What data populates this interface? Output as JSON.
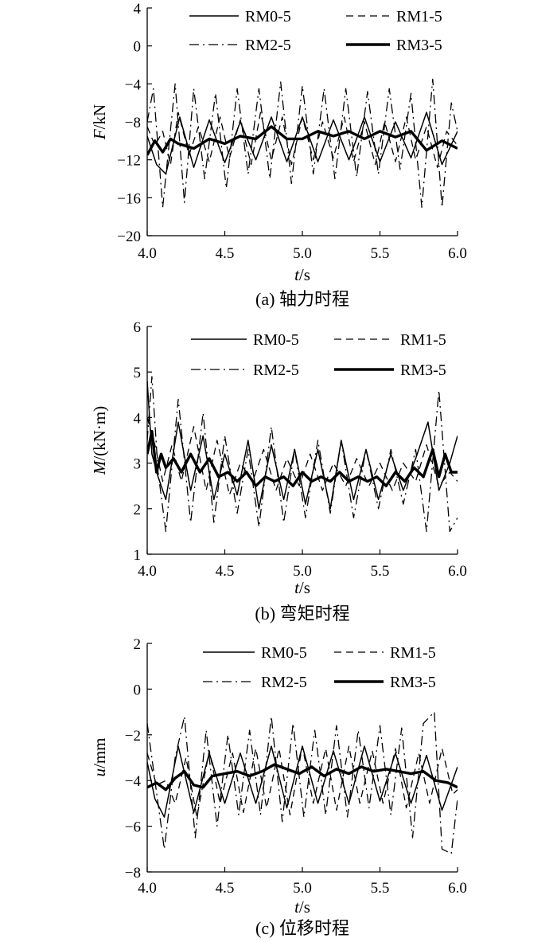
{
  "chart_data": [
    {
      "type": "line",
      "panel": "a",
      "caption": "(a) 轴力时程",
      "xlabel_var": "t",
      "xlabel_unit": "/s",
      "ylabel_var": "F",
      "ylabel_unit": "/kN",
      "xlim": [
        4.0,
        6.0
      ],
      "ylim": [
        -20,
        4
      ],
      "x_ticks": [
        "4.0",
        "4.5",
        "5.0",
        "5.5",
        "6.0"
      ],
      "y_ticks": [
        "4",
        "0",
        "−4",
        "−8",
        "−12",
        "−16",
        "−20"
      ],
      "y_tick_values": [
        4,
        0,
        -4,
        -8,
        -12,
        -16,
        -20
      ],
      "legend": [
        "RM0-5",
        "RM1-5",
        "RM2-5",
        "RM3-5"
      ],
      "series": [
        {
          "name": "RM0-5",
          "style": "solid",
          "x": [
            4.0,
            4.06,
            4.12,
            4.21,
            4.3,
            4.4,
            4.5,
            4.6,
            4.7,
            4.8,
            4.9,
            5.0,
            5.1,
            5.2,
            5.3,
            5.4,
            5.5,
            5.6,
            5.7,
            5.8,
            5.9,
            6.0
          ],
          "values": [
            -9.5,
            -12.5,
            -13.5,
            -7.5,
            -12.8,
            -7.8,
            -12.3,
            -8.0,
            -12.0,
            -7.5,
            -12.2,
            -7.5,
            -12.2,
            -7.8,
            -12.0,
            -7.5,
            -12.2,
            -8.0,
            -11.8,
            -7.0,
            -12.5,
            -9.0
          ]
        },
        {
          "name": "RM1-5",
          "style": "dashed",
          "x": [
            4.0,
            4.05,
            4.1,
            4.15,
            4.2,
            4.27,
            4.33,
            4.4,
            4.47,
            4.53,
            4.6,
            4.67,
            4.73,
            4.8,
            4.87,
            4.93,
            5.0,
            5.07,
            5.13,
            5.2,
            5.27,
            5.33,
            5.4,
            5.47,
            5.53,
            5.6,
            5.67,
            5.73,
            5.8,
            5.87,
            5.93,
            6.0
          ],
          "values": [
            -8.5,
            -10.5,
            -9.0,
            -12.5,
            -7.0,
            -11.5,
            -8.5,
            -12.2,
            -7.5,
            -11.8,
            -7.8,
            -12.5,
            -7.0,
            -12.0,
            -7.5,
            -12.5,
            -7.5,
            -12.0,
            -8.0,
            -11.8,
            -7.5,
            -12.2,
            -8.0,
            -12.5,
            -8.0,
            -12.2,
            -7.5,
            -12.0,
            -8.5,
            -12.8,
            -9.0,
            -10.5
          ]
        },
        {
          "name": "RM2-5",
          "style": "dashdot",
          "x": [
            4.0,
            4.04,
            4.1,
            4.18,
            4.24,
            4.3,
            4.37,
            4.44,
            4.51,
            4.58,
            4.65,
            4.72,
            4.79,
            4.86,
            4.93,
            5.0,
            5.07,
            5.14,
            5.21,
            5.28,
            5.35,
            5.42,
            5.49,
            5.56,
            5.63,
            5.7,
            5.77,
            5.84,
            5.9,
            5.96,
            6.0
          ],
          "values": [
            -8.0,
            -4.5,
            -17.0,
            -4.0,
            -16.5,
            -4.5,
            -14.0,
            -5.0,
            -15.0,
            -4.5,
            -13.5,
            -4.5,
            -14.0,
            -3.8,
            -14.5,
            -4.2,
            -13.5,
            -4.5,
            -14.0,
            -4.5,
            -13.8,
            -4.8,
            -13.5,
            -4.5,
            -13.0,
            -5.0,
            -17.0,
            -3.5,
            -17.0,
            -6.0,
            -9.0
          ]
        },
        {
          "name": "RM3-5",
          "style": "thick",
          "x": [
            4.0,
            4.05,
            4.1,
            4.15,
            4.2,
            4.3,
            4.4,
            4.5,
            4.6,
            4.7,
            4.8,
            4.9,
            5.0,
            5.1,
            5.2,
            5.3,
            5.4,
            5.5,
            5.6,
            5.7,
            5.8,
            5.9,
            6.0
          ],
          "values": [
            -11.5,
            -10.0,
            -11.2,
            -9.8,
            -10.3,
            -10.8,
            -9.8,
            -10.3,
            -9.5,
            -9.8,
            -8.5,
            -9.8,
            -9.8,
            -9.0,
            -9.5,
            -9.0,
            -9.8,
            -9.0,
            -9.6,
            -9.0,
            -11.0,
            -10.0,
            -10.8
          ]
        }
      ]
    },
    {
      "type": "line",
      "panel": "b",
      "caption": "(b) 弯矩时程",
      "xlabel_var": "t",
      "xlabel_unit": "/s",
      "ylabel_var": "M",
      "ylabel_unit": "/(kN·m)",
      "xlim": [
        4.0,
        6.0
      ],
      "ylim": [
        1,
        6
      ],
      "x_ticks": [
        "4.0",
        "4.5",
        "5.0",
        "5.5",
        "6.0"
      ],
      "y_ticks": [
        "6",
        "5",
        "4",
        "3",
        "2",
        "1"
      ],
      "y_tick_values": [
        6,
        5,
        4,
        3,
        2,
        1
      ],
      "legend": [
        "RM0-5",
        "RM1-5",
        "RM2-5",
        "RM3-5"
      ],
      "series": [
        {
          "name": "RM0-5",
          "style": "solid",
          "x": [
            4.0,
            4.03,
            4.07,
            4.12,
            4.2,
            4.28,
            4.36,
            4.43,
            4.5,
            4.58,
            4.65,
            4.72,
            4.8,
            4.88,
            4.95,
            5.02,
            5.1,
            5.18,
            5.25,
            5.33,
            5.41,
            5.49,
            5.57,
            5.65,
            5.73,
            5.81,
            5.88,
            5.95,
            6.0
          ],
          "values": [
            4.8,
            3.2,
            2.7,
            2.2,
            3.9,
            2.4,
            3.6,
            2.2,
            3.2,
            2.3,
            3.5,
            2.0,
            3.4,
            2.2,
            3.3,
            2.1,
            3.3,
            2.0,
            3.5,
            2.2,
            3.3,
            2.2,
            3.2,
            2.4,
            3.1,
            3.9,
            2.4,
            3.0,
            3.6
          ]
        },
        {
          "name": "RM1-5",
          "style": "dashed",
          "x": [
            4.0,
            4.05,
            4.1,
            4.16,
            4.22,
            4.3,
            4.38,
            4.45,
            4.53,
            4.6,
            4.68,
            4.75,
            4.83,
            4.9,
            4.98,
            5.05,
            5.13,
            5.2,
            5.28,
            5.35,
            5.43,
            5.5,
            5.58,
            5.65,
            5.73,
            5.8,
            5.88,
            5.95,
            6.0
          ],
          "values": [
            4.0,
            3.4,
            2.6,
            3.4,
            2.6,
            3.8,
            2.4,
            3.5,
            2.3,
            3.0,
            2.6,
            3.3,
            2.4,
            3.1,
            2.5,
            3.2,
            2.4,
            3.0,
            2.5,
            3.1,
            2.5,
            3.0,
            2.4,
            3.0,
            2.6,
            3.4,
            2.5,
            2.8,
            2.6
          ]
        },
        {
          "name": "RM2-5",
          "style": "dashdot",
          "x": [
            4.0,
            4.03,
            4.07,
            4.12,
            4.2,
            4.28,
            4.36,
            4.43,
            4.5,
            4.58,
            4.65,
            4.72,
            4.8,
            4.88,
            4.95,
            5.02,
            5.1,
            5.18,
            5.25,
            5.33,
            5.41,
            5.49,
            5.57,
            5.65,
            5.73,
            5.8,
            5.88,
            5.95,
            6.0
          ],
          "values": [
            3.5,
            4.9,
            2.8,
            1.5,
            4.4,
            1.7,
            4.1,
            1.7,
            3.6,
            1.9,
            3.3,
            1.6,
            3.8,
            1.7,
            3.3,
            1.8,
            3.5,
            1.9,
            3.5,
            1.8,
            3.3,
            2.0,
            3.3,
            2.1,
            3.3,
            1.5,
            4.6,
            1.5,
            1.8
          ]
        },
        {
          "name": "RM3-5",
          "style": "thick",
          "x": [
            4.0,
            4.03,
            4.06,
            4.09,
            4.12,
            4.17,
            4.22,
            4.28,
            4.34,
            4.4,
            4.46,
            4.52,
            4.58,
            4.64,
            4.7,
            4.76,
            4.82,
            4.88,
            4.94,
            5.0,
            5.06,
            5.12,
            5.18,
            5.24,
            5.3,
            5.36,
            5.42,
            5.48,
            5.54,
            5.6,
            5.66,
            5.72,
            5.78,
            5.84,
            5.88,
            5.92,
            5.96,
            6.0
          ],
          "values": [
            3.2,
            3.7,
            2.8,
            3.2,
            2.9,
            3.1,
            2.8,
            3.2,
            2.8,
            3.1,
            2.7,
            2.8,
            2.6,
            2.8,
            2.5,
            2.7,
            2.6,
            2.7,
            2.5,
            2.8,
            2.6,
            2.7,
            2.6,
            2.8,
            2.6,
            2.7,
            2.6,
            2.7,
            2.5,
            2.8,
            2.6,
            2.9,
            2.7,
            3.3,
            2.7,
            3.2,
            2.8,
            2.8
          ]
        }
      ]
    },
    {
      "type": "line",
      "panel": "c",
      "caption": "(c) 位移时程",
      "xlabel_var": "t",
      "xlabel_unit": "/s",
      "ylabel_var": "u",
      "ylabel_unit": "/mm",
      "xlim": [
        4.0,
        6.0
      ],
      "ylim": [
        -8,
        2
      ],
      "x_ticks": [
        "4.0",
        "4.5",
        "5.0",
        "5.5",
        "6.0"
      ],
      "y_ticks": [
        "2",
        "0",
        "−2",
        "−4",
        "−6",
        "−8"
      ],
      "y_tick_values": [
        2,
        0,
        -2,
        -4,
        -6,
        -8
      ],
      "legend": [
        "RM0-5",
        "RM1-5",
        "RM2-5",
        "RM3-5"
      ],
      "series": [
        {
          "name": "RM0-5",
          "style": "solid",
          "x": [
            4.0,
            4.05,
            4.11,
            4.2,
            4.3,
            4.4,
            4.5,
            4.6,
            4.7,
            4.8,
            4.9,
            5.0,
            5.1,
            5.2,
            5.3,
            5.4,
            5.5,
            5.6,
            5.7,
            5.8,
            5.9,
            6.0
          ],
          "values": [
            -3.2,
            -4.8,
            -5.6,
            -2.5,
            -5.4,
            -2.8,
            -5.0,
            -2.8,
            -5.0,
            -2.5,
            -5.2,
            -2.5,
            -5.0,
            -2.7,
            -5.0,
            -2.5,
            -4.9,
            -2.8,
            -5.0,
            -2.9,
            -5.3,
            -3.4
          ]
        },
        {
          "name": "RM1-5",
          "style": "dashed",
          "x": [
            4.0,
            4.06,
            4.12,
            4.18,
            4.25,
            4.32,
            4.4,
            4.47,
            4.55,
            4.62,
            4.7,
            4.77,
            4.85,
            4.92,
            5.0,
            5.07,
            5.15,
            5.22,
            5.3,
            5.37,
            5.45,
            5.52,
            5.6,
            5.67,
            5.75,
            5.82,
            5.9,
            5.97,
            6.0
          ],
          "values": [
            -2.8,
            -4.2,
            -4.0,
            -5.0,
            -3.0,
            -5.6,
            -2.7,
            -5.0,
            -2.8,
            -5.4,
            -2.6,
            -5.2,
            -2.6,
            -5.5,
            -2.5,
            -5.0,
            -2.6,
            -5.3,
            -2.5,
            -5.0,
            -2.7,
            -5.0,
            -2.6,
            -5.2,
            -2.8,
            -5.0,
            -2.6,
            -4.6,
            -4.4
          ]
        },
        {
          "name": "RM2-5",
          "style": "dashdot",
          "x": [
            4.0,
            4.05,
            4.11,
            4.18,
            4.24,
            4.31,
            4.38,
            4.45,
            4.52,
            4.59,
            4.66,
            4.73,
            4.8,
            4.87,
            4.94,
            5.01,
            5.08,
            5.15,
            5.22,
            5.29,
            5.36,
            5.43,
            5.5,
            5.57,
            5.64,
            5.71,
            5.78,
            5.85,
            5.9,
            5.96,
            6.0
          ],
          "values": [
            -1.5,
            -4.0,
            -7.0,
            -3.0,
            -1.2,
            -6.5,
            -1.8,
            -6.0,
            -2.0,
            -5.5,
            -1.8,
            -5.5,
            -1.2,
            -5.8,
            -1.5,
            -5.6,
            -1.8,
            -5.5,
            -1.6,
            -5.6,
            -1.8,
            -5.2,
            -1.6,
            -5.5,
            -1.7,
            -6.5,
            -1.5,
            -1.0,
            -7.0,
            -7.2,
            -4.8
          ]
        },
        {
          "name": "RM3-5",
          "style": "thick",
          "x": [
            4.0,
            4.06,
            4.12,
            4.18,
            4.24,
            4.3,
            4.36,
            4.42,
            4.5,
            4.58,
            4.66,
            4.74,
            4.82,
            4.9,
            4.98,
            5.06,
            5.14,
            5.22,
            5.3,
            5.38,
            5.46,
            5.54,
            5.62,
            5.7,
            5.78,
            5.86,
            5.94,
            6.0
          ],
          "values": [
            -4.3,
            -4.1,
            -4.4,
            -3.9,
            -3.6,
            -4.2,
            -4.3,
            -3.8,
            -3.7,
            -3.6,
            -3.8,
            -3.6,
            -3.3,
            -3.5,
            -3.7,
            -3.4,
            -3.8,
            -3.5,
            -3.7,
            -3.4,
            -3.6,
            -3.5,
            -3.6,
            -3.7,
            -3.6,
            -4.0,
            -4.1,
            -4.3
          ]
        }
      ]
    }
  ]
}
